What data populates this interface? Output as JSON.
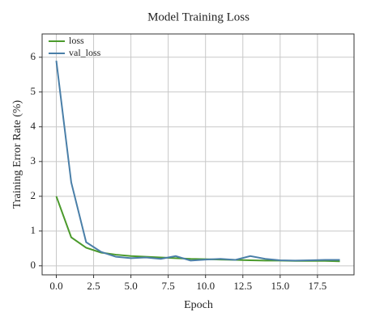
{
  "chart_data": {
    "type": "line",
    "title": "Model Training Loss",
    "x_label": "Epoch",
    "y_label": "Training Error Rate (%)",
    "x": [
      0,
      1,
      2,
      3,
      4,
      5,
      6,
      7,
      8,
      9,
      10,
      11,
      12,
      13,
      14,
      15,
      16,
      17,
      18,
      19
    ],
    "series": [
      {
        "name": "loss",
        "color": "#4b9a2c",
        "values": [
          2.0,
          0.82,
          0.52,
          0.38,
          0.32,
          0.28,
          0.26,
          0.24,
          0.22,
          0.2,
          0.19,
          0.18,
          0.17,
          0.16,
          0.15,
          0.15,
          0.14,
          0.14,
          0.14,
          0.13
        ]
      },
      {
        "name": "val_loss",
        "color": "#4a7fa8",
        "values": [
          5.9,
          2.4,
          0.68,
          0.4,
          0.26,
          0.22,
          0.24,
          0.2,
          0.28,
          0.15,
          0.18,
          0.2,
          0.17,
          0.28,
          0.2,
          0.16,
          0.15,
          0.16,
          0.17,
          0.17
        ]
      }
    ],
    "xlim": [
      -0.95,
      19.95
    ],
    "xticks": [
      {
        "value": 0,
        "label": "0.0"
      },
      {
        "value": 2.5,
        "label": "2.5"
      },
      {
        "value": 5,
        "label": "5.0"
      },
      {
        "value": 7.5,
        "label": "7.5"
      },
      {
        "value": 10,
        "label": "10.0"
      },
      {
        "value": 12.5,
        "label": "12.5"
      },
      {
        "value": 15,
        "label": "15.0"
      },
      {
        "value": 17.5,
        "label": "17.5"
      }
    ],
    "ylim": [
      -0.26,
      6.67
    ],
    "yticks": [
      0,
      1,
      2,
      3,
      4,
      5,
      6
    ],
    "grid": true,
    "legend": "upper-left"
  }
}
